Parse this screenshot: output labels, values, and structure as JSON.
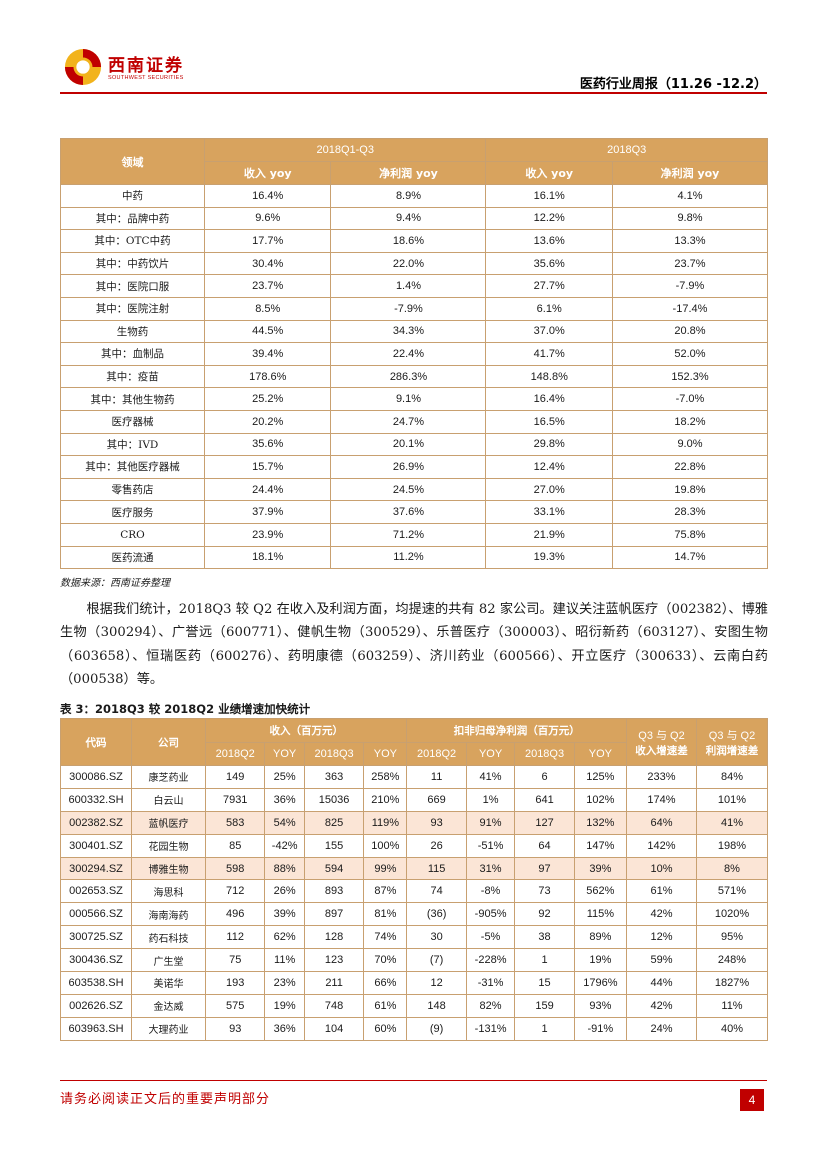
{
  "header": {
    "brand_cn": "西南证券",
    "brand_en": "SOUTHWEST SECURITIES",
    "report_title": "医药行业周报（11.26 -12.2）"
  },
  "table1": {
    "col_domain": "领域",
    "group1": "2018Q1-Q3",
    "group2": "2018Q3",
    "revenue_yoy": "收入 yoy",
    "profit_yoy": "净利润 yoy",
    "rows": [
      {
        "label": "中药",
        "v": [
          "16.4%",
          "8.9%",
          "16.1%",
          "4.1%"
        ]
      },
      {
        "label": "其中：品牌中药",
        "v": [
          "9.6%",
          "9.4%",
          "12.2%",
          "9.8%"
        ]
      },
      {
        "label": "其中：OTC中药",
        "v": [
          "17.7%",
          "18.6%",
          "13.6%",
          "13.3%"
        ]
      },
      {
        "label": "其中：中药饮片",
        "v": [
          "30.4%",
          "22.0%",
          "35.6%",
          "23.7%"
        ]
      },
      {
        "label": "其中：医院口服",
        "v": [
          "23.7%",
          "1.4%",
          "27.7%",
          "-7.9%"
        ]
      },
      {
        "label": "其中：医院注射",
        "v": [
          "8.5%",
          "-7.9%",
          "6.1%",
          "-17.4%"
        ]
      },
      {
        "label": "生物药",
        "v": [
          "44.5%",
          "34.3%",
          "37.0%",
          "20.8%"
        ]
      },
      {
        "label": "其中：血制品",
        "v": [
          "39.4%",
          "22.4%",
          "41.7%",
          "52.0%"
        ]
      },
      {
        "label": "其中：疫苗",
        "v": [
          "178.6%",
          "286.3%",
          "148.8%",
          "152.3%"
        ]
      },
      {
        "label": "其中：其他生物药",
        "v": [
          "25.2%",
          "9.1%",
          "16.4%",
          "-7.0%"
        ]
      },
      {
        "label": "医疗器械",
        "v": [
          "20.2%",
          "24.7%",
          "16.5%",
          "18.2%"
        ]
      },
      {
        "label": "其中：IVD",
        "v": [
          "35.6%",
          "20.1%",
          "29.8%",
          "9.0%"
        ]
      },
      {
        "label": "其中：其他医疗器械",
        "v": [
          "15.7%",
          "26.9%",
          "12.4%",
          "22.8%"
        ]
      },
      {
        "label": "零售药店",
        "v": [
          "24.4%",
          "24.5%",
          "27.0%",
          "19.8%"
        ]
      },
      {
        "label": "医疗服务",
        "v": [
          "37.9%",
          "37.6%",
          "33.1%",
          "28.3%"
        ]
      },
      {
        "label": "CRO",
        "v": [
          "23.9%",
          "71.2%",
          "21.9%",
          "75.8%"
        ]
      },
      {
        "label": "医药流通",
        "v": [
          "18.1%",
          "11.2%",
          "19.3%",
          "14.7%"
        ]
      }
    ]
  },
  "source_note": "数据来源：西南证券整理",
  "paragraph": "根据我们统计，2018Q3 较 Q2 在收入及利润方面，均提速的共有 82 家公司。建议关注蓝帆医疗（002382）、博雅生物（300294）、广誉远（600771）、健帆生物（300529）、乐普医疗（300003）、昭衍新药（603127）、安图生物（603658）、恒瑞医药（600276）、药明康德（603259）、济川药业（600566）、开立医疗（300633）、云南白药（000538）等。",
  "table2": {
    "title": "表 3：2018Q3 较 2018Q2 业绩增速加快统计",
    "h_code": "代码",
    "h_company": "公司",
    "h_revenue": "收入（百万元）",
    "h_profit": "扣非归母净利润（百万元）",
    "h_q3q2_rev_1": "Q3 与 Q2",
    "h_q3q2_rev_2": "收入增速差",
    "h_q3q2_prof_1": "Q3 与 Q2",
    "h_q3q2_prof_2": "利润增速差",
    "sub": [
      "2018Q2",
      "YOY",
      "2018Q3",
      "YOY",
      "2018Q2",
      "YOY",
      "2018Q3",
      "YOY"
    ],
    "rows": [
      {
        "code": "300086.SZ",
        "name": "康芝药业",
        "v": [
          "149",
          "25%",
          "363",
          "258%",
          "11",
          "41%",
          "6",
          "125%",
          "233%",
          "84%"
        ]
      },
      {
        "code": "600332.SH",
        "name": "白云山",
        "v": [
          "7931",
          "36%",
          "15036",
          "210%",
          "669",
          "1%",
          "641",
          "102%",
          "174%",
          "101%"
        ]
      },
      {
        "code": "002382.SZ",
        "name": "蓝帆医疗",
        "v": [
          "583",
          "54%",
          "825",
          "119%",
          "93",
          "91%",
          "127",
          "132%",
          "64%",
          "41%"
        ]
      },
      {
        "code": "300401.SZ",
        "name": "花园生物",
        "v": [
          "85",
          "-42%",
          "155",
          "100%",
          "26",
          "-51%",
          "64",
          "147%",
          "142%",
          "198%"
        ]
      },
      {
        "code": "300294.SZ",
        "name": "博雅生物",
        "v": [
          "598",
          "88%",
          "594",
          "99%",
          "115",
          "31%",
          "97",
          "39%",
          "10%",
          "8%"
        ]
      },
      {
        "code": "002653.SZ",
        "name": "海思科",
        "v": [
          "712",
          "26%",
          "893",
          "87%",
          "74",
          "-8%",
          "73",
          "562%",
          "61%",
          "571%"
        ]
      },
      {
        "code": "000566.SZ",
        "name": "海南海药",
        "v": [
          "496",
          "39%",
          "897",
          "81%",
          "(36)",
          "-905%",
          "92",
          "115%",
          "42%",
          "1020%"
        ]
      },
      {
        "code": "300725.SZ",
        "name": "药石科技",
        "v": [
          "112",
          "62%",
          "128",
          "74%",
          "30",
          "-5%",
          "38",
          "89%",
          "12%",
          "95%"
        ]
      },
      {
        "code": "300436.SZ",
        "name": "广生堂",
        "v": [
          "75",
          "11%",
          "123",
          "70%",
          "(7)",
          "-228%",
          "1",
          "19%",
          "59%",
          "248%"
        ]
      },
      {
        "code": "603538.SH",
        "name": "美诺华",
        "v": [
          "193",
          "23%",
          "211",
          "66%",
          "12",
          "-31%",
          "15",
          "1796%",
          "44%",
          "1827%"
        ]
      },
      {
        "code": "002626.SZ",
        "name": "金达威",
        "v": [
          "575",
          "19%",
          "748",
          "61%",
          "148",
          "82%",
          "159",
          "93%",
          "42%",
          "11%"
        ]
      },
      {
        "code": "603963.SH",
        "name": "大理药业",
        "v": [
          "93",
          "36%",
          "104",
          "60%",
          "(9)",
          "-131%",
          "1",
          "-91%",
          "24%",
          "40%"
        ]
      }
    ]
  },
  "footer": {
    "disclaimer": "请务必阅读正文后的重要声明部分",
    "page": "4"
  }
}
